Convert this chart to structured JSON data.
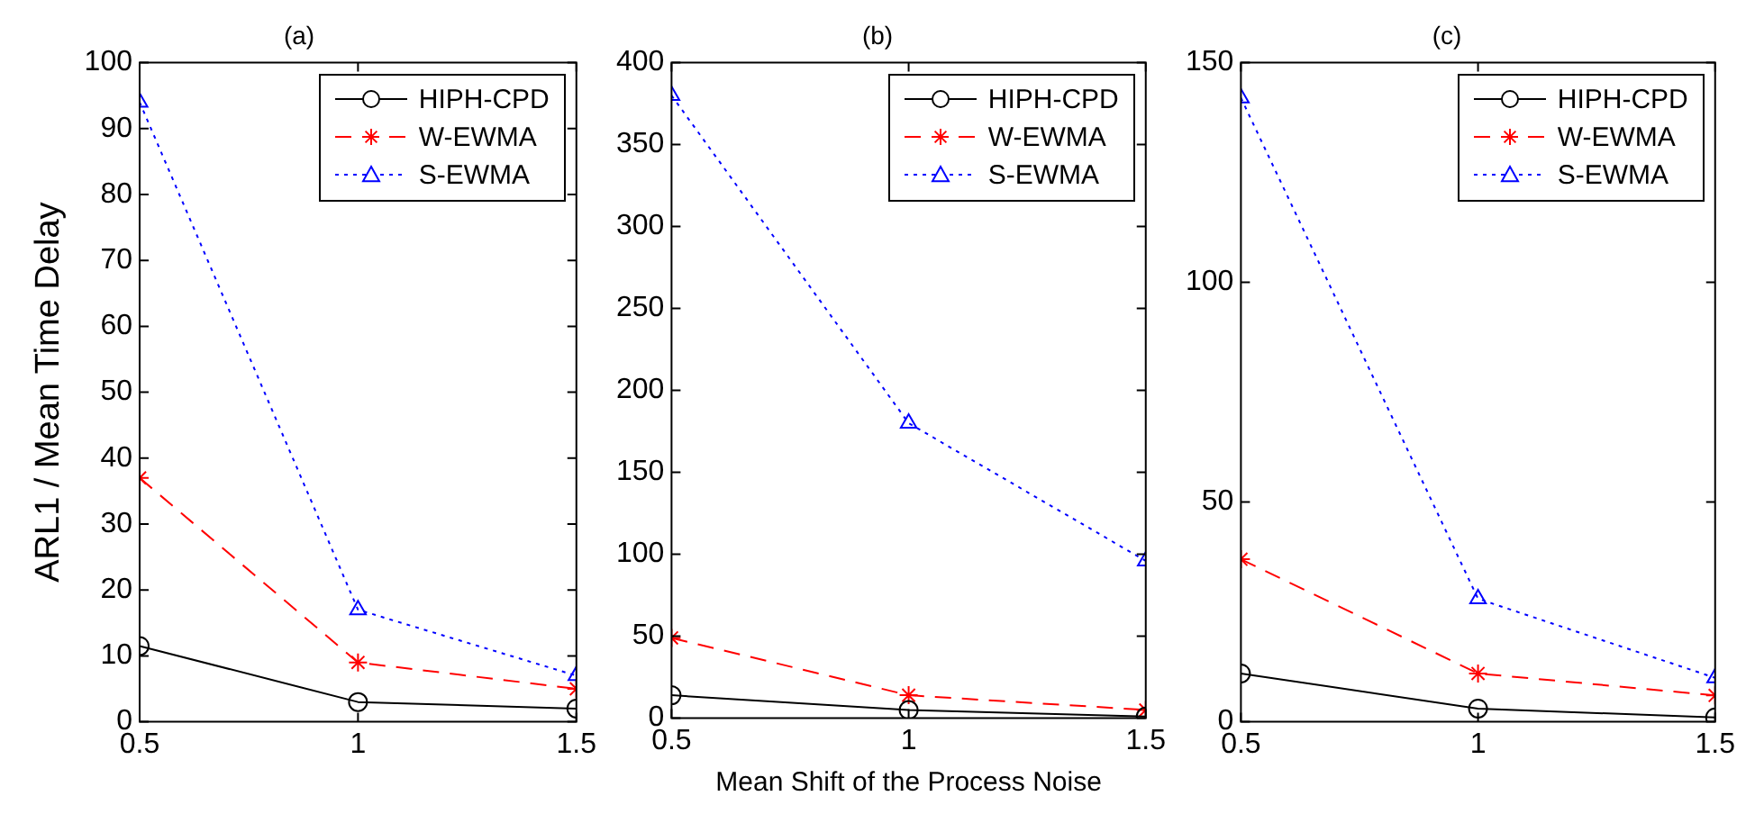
{
  "chart_data": [
    {
      "type": "line",
      "title": "(a)",
      "ylabel": "ARL1 / Mean Time Delay",
      "x": [
        0.5,
        1,
        1.5
      ],
      "xlim": [
        0.5,
        1.5
      ],
      "xticks": [
        0.5,
        1,
        1.5
      ],
      "ylim": [
        0,
        100
      ],
      "yticks": [
        0,
        10,
        20,
        30,
        40,
        50,
        60,
        70,
        80,
        90,
        100
      ],
      "grid": false,
      "legend": "top right",
      "series": [
        {
          "name": "HIPH-CPD",
          "color": "#000000",
          "values": [
            11.5,
            3,
            2
          ],
          "marker": "circle",
          "line_style": "solid"
        },
        {
          "name": "W-EWMA",
          "color": "#ff0000",
          "values": [
            37,
            9,
            5
          ],
          "marker": "cross",
          "line_style": "dashed"
        },
        {
          "name": "S-EWMA",
          "color": "#0000ff",
          "values": [
            94,
            17,
            7
          ],
          "marker": "triangle",
          "line_style": "dotted"
        }
      ]
    },
    {
      "type": "line",
      "title": "(b)",
      "xlabel": "Mean Shift of the Process Noise",
      "x": [
        0.5,
        1,
        1.5
      ],
      "xlim": [
        0.5,
        1.5
      ],
      "xticks": [
        0.5,
        1,
        1.5
      ],
      "ylim": [
        0,
        400
      ],
      "yticks": [
        0,
        50,
        100,
        150,
        200,
        250,
        300,
        350,
        400
      ],
      "grid": false,
      "legend": "top right",
      "series": [
        {
          "name": "HIPH-CPD",
          "color": "#000000",
          "values": [
            14,
            5,
            1
          ],
          "marker": "circle",
          "line_style": "solid"
        },
        {
          "name": "W-EWMA",
          "color": "#ff0000",
          "values": [
            49,
            14,
            5
          ],
          "marker": "cross",
          "line_style": "dashed"
        },
        {
          "name": "S-EWMA",
          "color": "#0000ff",
          "values": [
            380,
            180,
            96
          ],
          "marker": "triangle",
          "line_style": "dotted"
        }
      ]
    },
    {
      "type": "line",
      "title": "(c)",
      "x": [
        0.5,
        1,
        1.5
      ],
      "xlim": [
        0.5,
        1.5
      ],
      "xticks": [
        0.5,
        1,
        1.5
      ],
      "ylim": [
        0,
        150
      ],
      "yticks": [
        0,
        50,
        100,
        150
      ],
      "grid": false,
      "legend": "top right",
      "series": [
        {
          "name": "HIPH-CPD",
          "color": "#000000",
          "values": [
            11,
            3,
            1
          ],
          "marker": "circle",
          "line_style": "solid"
        },
        {
          "name": "W-EWMA",
          "color": "#ff0000",
          "values": [
            37,
            11,
            6
          ],
          "marker": "cross",
          "line_style": "dashed"
        },
        {
          "name": "S-EWMA",
          "color": "#0000ff",
          "values": [
            142,
            28,
            10
          ],
          "marker": "triangle",
          "line_style": "dotted"
        }
      ]
    }
  ]
}
